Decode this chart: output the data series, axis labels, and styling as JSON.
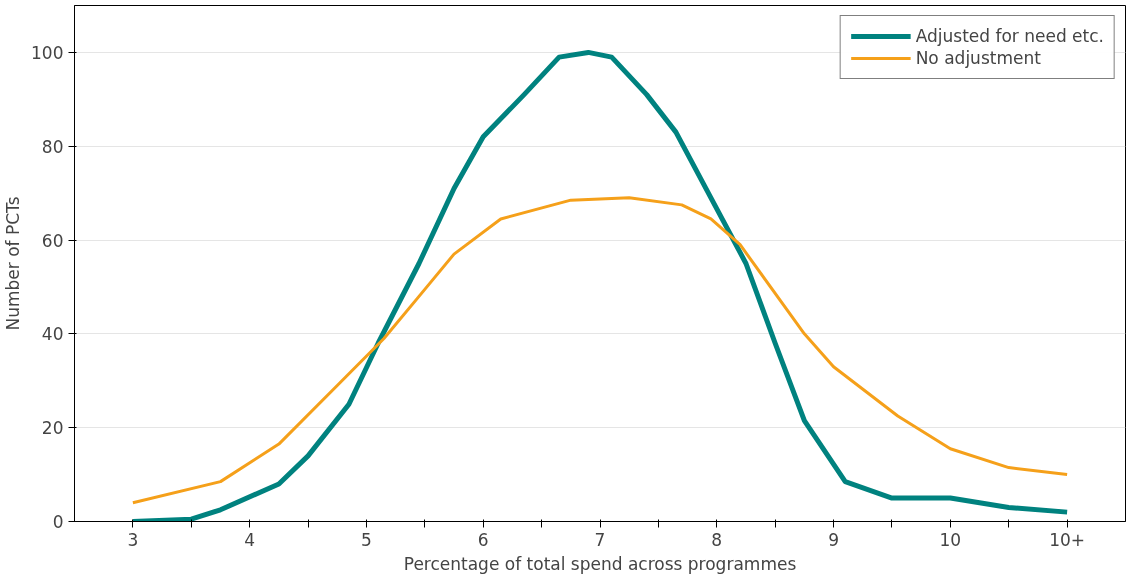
{
  "chart_data": {
    "type": "line",
    "xlabel": "Percentage of total spend across programmes",
    "ylabel": "Number of PCTs",
    "series": [
      {
        "name": "Adjusted for need etc.",
        "color": "#00827f",
        "x": [
          3,
          3.5,
          3.75,
          4.25,
          4.5,
          4.85,
          5.1,
          5.45,
          5.75,
          6,
          6.35,
          6.65,
          6.9,
          7.1,
          7.4,
          7.65,
          7.95,
          8.25,
          8.5,
          8.75,
          9.1,
          9.5,
          10,
          10.5,
          11
        ],
        "values": [
          0,
          0.5,
          2.5,
          8,
          14,
          25,
          38,
          55,
          71,
          82,
          91,
          99,
          100,
          99,
          91,
          83,
          69,
          55,
          38,
          21.5,
          8.5,
          5,
          5,
          3,
          2
        ]
      },
      {
        "name": "No adjustment",
        "color": "#f5a01a",
        "x": [
          3,
          3.75,
          4.25,
          4.75,
          5.15,
          5.45,
          5.75,
          6.15,
          6.75,
          7.25,
          7.7,
          7.95,
          8.2,
          8.75,
          9,
          9.55,
          10,
          10.5,
          11
        ],
        "values": [
          4,
          8.5,
          16.5,
          29,
          39,
          48,
          57,
          64.5,
          68.5,
          69,
          67.5,
          64.5,
          59,
          40,
          33,
          22.5,
          15.5,
          11.5,
          10
        ]
      }
    ],
    "xlim": [
      2.5,
      11.5
    ],
    "ylim": [
      0,
      110
    ],
    "xticks": [
      3,
      {
        "value": 3.5,
        "label": null
      },
      4,
      {
        "value": 4.5,
        "label": null
      },
      5,
      {
        "value": 5.5,
        "label": null
      },
      6,
      {
        "value": 6.5,
        "label": null
      },
      7,
      {
        "value": 7.5,
        "label": null
      },
      8,
      {
        "value": 8.5,
        "label": null
      },
      9,
      {
        "value": 9.5,
        "label": null
      },
      10,
      {
        "value": 10.5,
        "label": null
      },
      {
        "value": 11,
        "label": "10+"
      }
    ],
    "yticks": [
      0,
      20,
      40,
      60,
      80,
      100
    ],
    "grid": "y",
    "legend": "top right",
    "marker": "none",
    "line_style": "solid"
  }
}
